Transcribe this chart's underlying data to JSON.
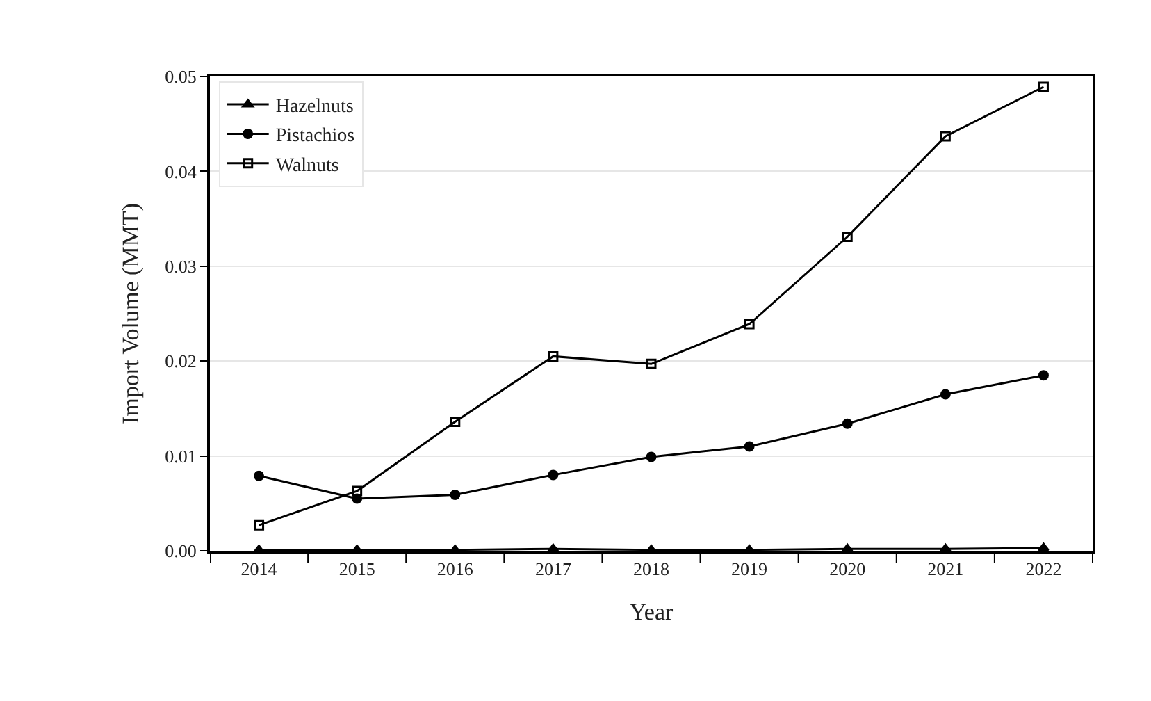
{
  "chart_data": {
    "type": "line",
    "xlabel": "Year",
    "ylabel": "Import Volume (MMT)",
    "categories": [
      "2014",
      "2015",
      "2016",
      "2017",
      "2018",
      "2019",
      "2020",
      "2021",
      "2022"
    ],
    "series": [
      {
        "name": "Hazelnuts",
        "color": "#000000",
        "marker": "triangle",
        "values": [
          0.0001,
          0.0001,
          0.0001,
          0.0002,
          0.0001,
          0.0001,
          0.0002,
          0.0002,
          0.0003
        ]
      },
      {
        "name": "Pistachios",
        "color": "#000000",
        "marker": "circle",
        "values": [
          0.0079,
          0.0055,
          0.0059,
          0.008,
          0.0099,
          0.011,
          0.0134,
          0.0165,
          0.0185
        ]
      },
      {
        "name": "Walnuts",
        "color": "#000000",
        "marker": "square-open",
        "values": [
          0.0027,
          0.0063,
          0.0136,
          0.0205,
          0.0197,
          0.0239,
          0.0331,
          0.0437,
          0.0489
        ]
      }
    ],
    "ylim": [
      0,
      0.05
    ],
    "yticks": [
      {
        "value": 0,
        "label": "0.00"
      },
      {
        "value": 0.01,
        "label": "0.01"
      },
      {
        "value": 0.02,
        "label": "0.02"
      },
      {
        "value": 0.03,
        "label": "0.03"
      },
      {
        "value": 0.04,
        "label": "0.04"
      },
      {
        "value": 0.05,
        "label": "0.05"
      }
    ],
    "grid": "y",
    "legend": "top left",
    "line_style": "solid"
  }
}
